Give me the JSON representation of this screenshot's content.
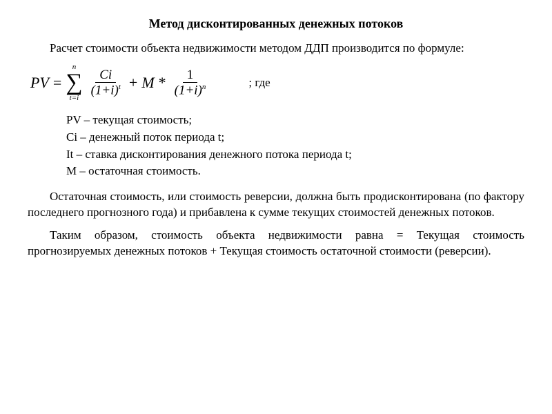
{
  "title": "Метод дисконтированных денежных потоков",
  "intro": "Расчет стоимости объекта недвижимости методом ДДП производится по формуле:",
  "formula": {
    "lhs": "PV",
    "eq": "=",
    "sigma_top": "n",
    "sigma_bot": "t=i",
    "frac1_num": "Ci",
    "frac1_den_base": "(1+i)",
    "frac1_den_exp": "t",
    "plus": "+",
    "M": "M",
    "star": "*",
    "frac2_num": "1",
    "frac2_den_base": "(1+i)",
    "frac2_den_exp": "n"
  },
  "where_label": "; где",
  "defs": {
    "d1": "PV – текущая стоимость;",
    "d2": "Ci – денежный поток периода t;",
    "d3": "It – ставка дисконтирования денежного потока периода t;",
    "d4": "M – остаточная стоимость."
  },
  "para2": "Остаточная стоимость, или стоимость реверсии, должна быть продисконтирована (по фактору последнего прогнозного года) и прибавлена к сумме текущих стоимостей денежных потоков.",
  "para3": "Таким образом, стоимость объекта недвижимости равна = Текущая стоимость прогнозируемых денежных потоков + Текущая стоимость остаточной стоимости (реверсии).",
  "style": {
    "background_color": "#ffffff",
    "text_color": "#000000",
    "font_family": "Times New Roman",
    "title_fontsize": 18,
    "body_fontsize": 17,
    "formula_fontsize": 22
  }
}
